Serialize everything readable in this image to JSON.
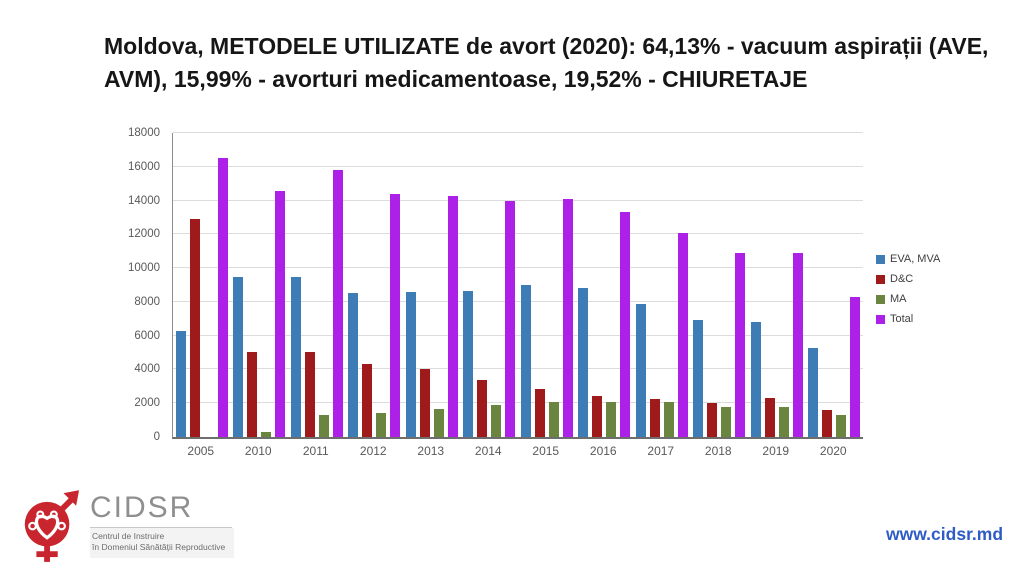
{
  "slide": {
    "title": "Moldova, METODELE UTILIZATE de avort (2020): 64,13% - vacuum aspirații (AVE, AVM), 15,99% - avorturi medicamentoase, 19,52% - CHIURETAJE"
  },
  "chart_data": {
    "type": "bar",
    "title": "",
    "xlabel": "",
    "ylabel": "",
    "categories": [
      "2005",
      "2010",
      "2011",
      "2012",
      "2013",
      "2014",
      "2015",
      "2016",
      "2017",
      "2018",
      "2019",
      "2020"
    ],
    "series": [
      {
        "name": "EVA, MVA",
        "color": "#3e7cb5",
        "values": [
          6250,
          9500,
          9500,
          8500,
          8600,
          8650,
          9000,
          8800,
          7900,
          6950,
          6800,
          5300
        ]
      },
      {
        "name": "D&C",
        "color": "#9e1a1b",
        "values": [
          12900,
          5050,
          5050,
          4350,
          4000,
          3350,
          2850,
          2400,
          2250,
          2000,
          2300,
          1620
        ]
      },
      {
        "name": "MA",
        "color": "#6a8540",
        "values": [
          0,
          300,
          1300,
          1400,
          1650,
          1900,
          2100,
          2050,
          2050,
          1800,
          1800,
          1330
        ]
      },
      {
        "name": "Total",
        "color": "#ac20e8",
        "values": [
          16500,
          14550,
          15800,
          14400,
          14250,
          13950,
          14100,
          13300,
          12100,
          10900,
          10900,
          8300
        ]
      }
    ],
    "ylim": [
      0,
      18000
    ],
    "ytick_step": 2000,
    "grid": true,
    "legend_position": "right"
  },
  "footer": {
    "logo_text": "CIDSR",
    "logo_sub1": "Centrul de Instruire",
    "logo_sub2": "în Domeniul Sănătății Reproductive",
    "logo_color": "#c9252e",
    "website": "www.cidsr.md",
    "website_color": "#2e5bc6"
  }
}
